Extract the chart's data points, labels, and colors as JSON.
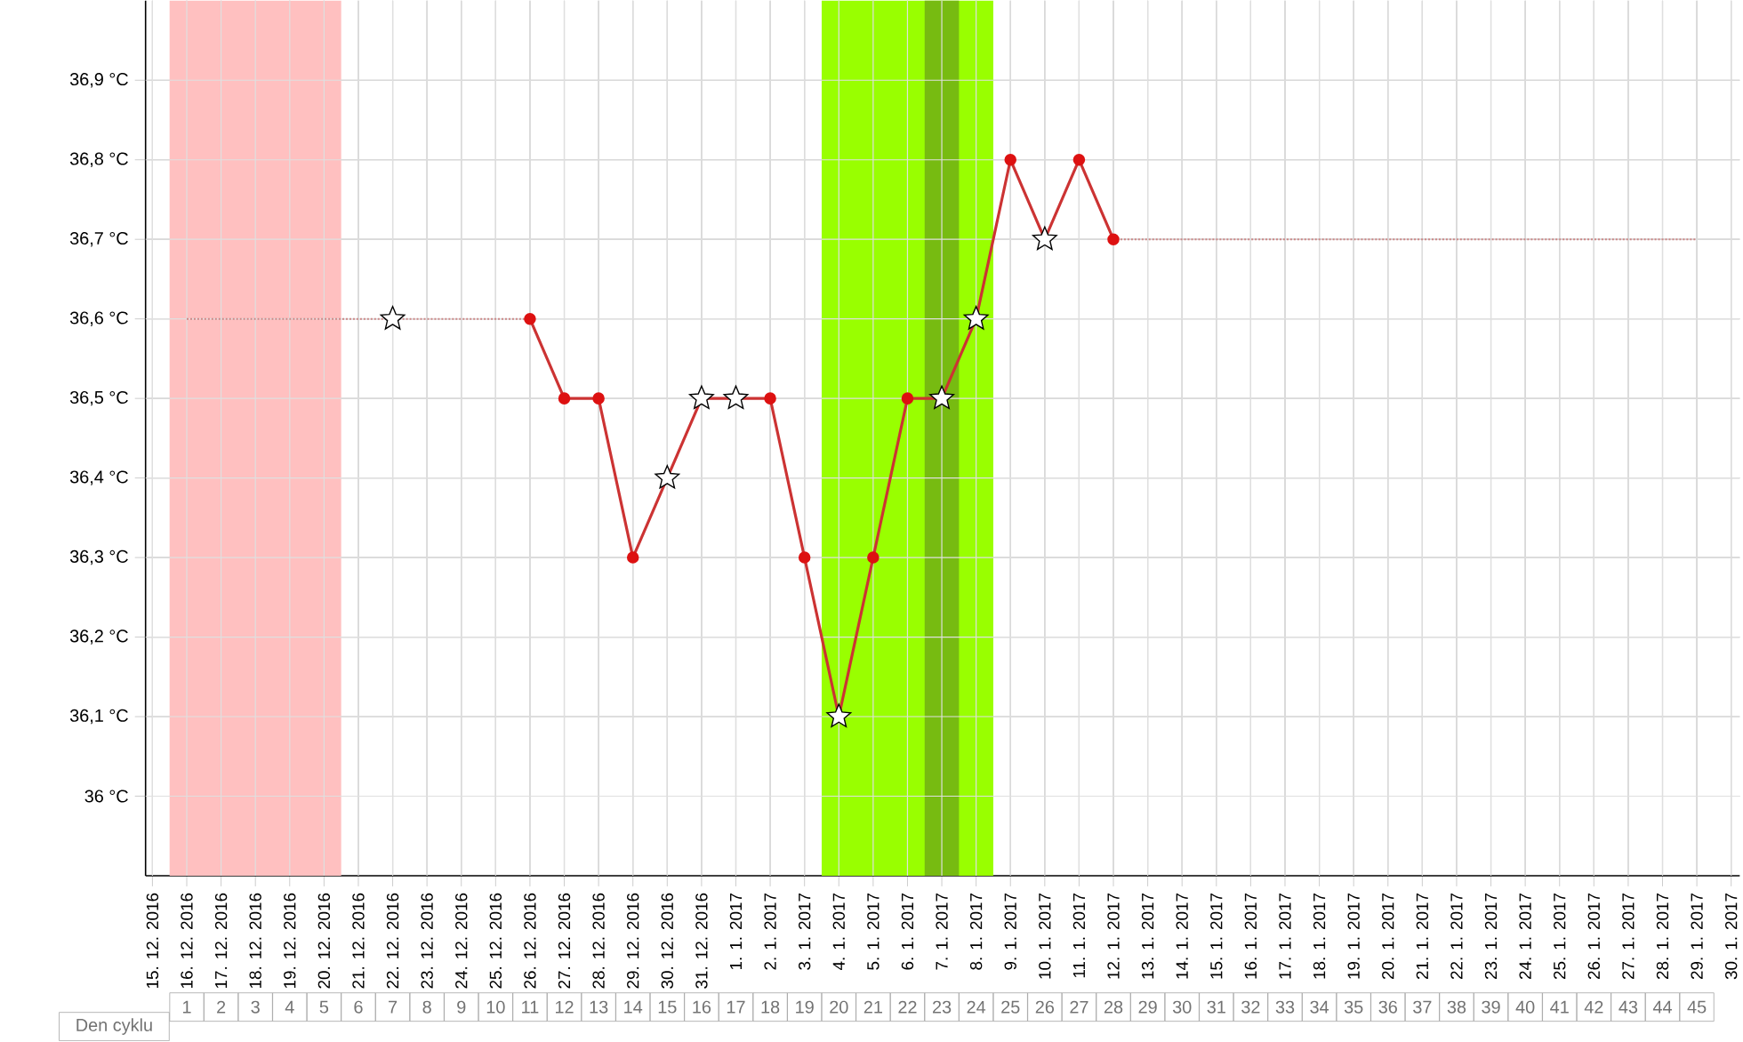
{
  "chart_data": {
    "type": "line",
    "categories": [
      "15. 12. 2016",
      "16. 12. 2016",
      "17. 12. 2016",
      "18. 12. 2016",
      "19. 12. 2016",
      "20. 12. 2016",
      "21. 12. 2016",
      "22. 12. 2016",
      "23. 12. 2016",
      "24. 12. 2016",
      "25. 12. 2016",
      "26. 12. 2016",
      "27. 12. 2016",
      "28. 12. 2016",
      "29. 12. 2016",
      "30. 12. 2016",
      "31. 12. 2016",
      "1. 1. 2017",
      "2. 1. 2017",
      "3. 1. 2017",
      "4. 1. 2017",
      "5. 1. 2017",
      "6. 1. 2017",
      "7. 1. 2017",
      "8. 1. 2017",
      "9. 1. 2017",
      "10. 1. 2017",
      "11. 1. 2017",
      "12. 1. 2017",
      "13. 1. 2017",
      "14. 1. 2017",
      "15. 1. 2017",
      "16. 1. 2017",
      "17. 1. 2017",
      "18. 1. 2017",
      "19. 1. 2017",
      "20. 1. 2017",
      "21. 1. 2017",
      "22. 1. 2017",
      "23. 1. 2017",
      "24. 1. 2017",
      "25. 1. 2017",
      "26. 1. 2017",
      "27. 1. 2017",
      "28. 1. 2017",
      "29. 1. 2017",
      "30. 1. 2017"
    ],
    "series": [
      {
        "color": "#cc8888",
        "line_style": "dotted",
        "marker": "none",
        "values": [
          null,
          36.6,
          36.6,
          36.6,
          36.6,
          36.6,
          36.6,
          36.6,
          36.6,
          36.6,
          36.6,
          36.6,
          null,
          null,
          null,
          null,
          null,
          null,
          null,
          null,
          null,
          null,
          null,
          null,
          null,
          null,
          null,
          null,
          36.7,
          36.7,
          36.7,
          36.7,
          36.7,
          36.7,
          36.7,
          36.7,
          36.7,
          36.7,
          36.7,
          36.7,
          36.7,
          36.7,
          36.7,
          36.7,
          36.7,
          36.7,
          null
        ]
      },
      {
        "color": "#cc3333",
        "line_style": "solid",
        "marker": "circle",
        "values": [
          null,
          null,
          null,
          null,
          null,
          null,
          null,
          null,
          null,
          null,
          null,
          36.6,
          36.5,
          36.5,
          36.3,
          36.4,
          36.5,
          36.5,
          36.5,
          36.3,
          36.1,
          36.3,
          36.5,
          36.5,
          36.6,
          36.8,
          36.7,
          36.8,
          36.7,
          null,
          null,
          null,
          null,
          null,
          null,
          null,
          null,
          null,
          null,
          null,
          null,
          null,
          null,
          null,
          null,
          null,
          null
        ]
      },
      {
        "type": "scatter",
        "color": "#ffffff",
        "marker": "star",
        "values": [
          null,
          null,
          null,
          null,
          null,
          null,
          null,
          36.6,
          null,
          null,
          null,
          null,
          null,
          null,
          null,
          36.4,
          36.5,
          36.5,
          null,
          null,
          36.1,
          null,
          null,
          36.5,
          36.6,
          null,
          36.7,
          null,
          null,
          null,
          null,
          null,
          null,
          null,
          null,
          null,
          null,
          null,
          null,
          null,
          null,
          null,
          null,
          null,
          null,
          null,
          null
        ]
      }
    ],
    "ylim": [
      35.9,
      37.0
    ],
    "yticks": [
      {
        "value": 36,
        "label": "36 °C"
      },
      {
        "value": 36.1,
        "label": "36,1 °C"
      },
      {
        "value": 36.2,
        "label": "36,2 °C"
      },
      {
        "value": 36.3,
        "label": "36,3 °C"
      },
      {
        "value": 36.4,
        "label": "36,4 °C"
      },
      {
        "value": 36.5,
        "label": "36,5 °C"
      },
      {
        "value": 36.6,
        "label": "36,6 °C"
      },
      {
        "value": 36.7,
        "label": "36,7 °C"
      },
      {
        "value": 36.8,
        "label": "36,8 °C"
      },
      {
        "value": 36.9,
        "label": "36,9 °C"
      }
    ],
    "x2label": "Den cyklu",
    "x2lim": [
      0,
      46
    ],
    "x2ticks": [
      1,
      2,
      3,
      4,
      5,
      6,
      7,
      8,
      9,
      10,
      11,
      12,
      13,
      14,
      15,
      16,
      17,
      18,
      19,
      20,
      21,
      22,
      23,
      24,
      25,
      26,
      27,
      28,
      29,
      30,
      31,
      32,
      33,
      34,
      35,
      36,
      37,
      38,
      39,
      40,
      41,
      42,
      43,
      44,
      45
    ],
    "bands": [
      {
        "axis": "x2",
        "from": 0.5,
        "to": 5.5,
        "color": "#ffc0c0"
      },
      {
        "axis": "x2",
        "from": 19.5,
        "to": 24.5,
        "color": "#99ff00"
      },
      {
        "axis": "x2",
        "from": 22.5,
        "to": 23.5,
        "color": "#77bb11"
      }
    ],
    "grid": true
  }
}
